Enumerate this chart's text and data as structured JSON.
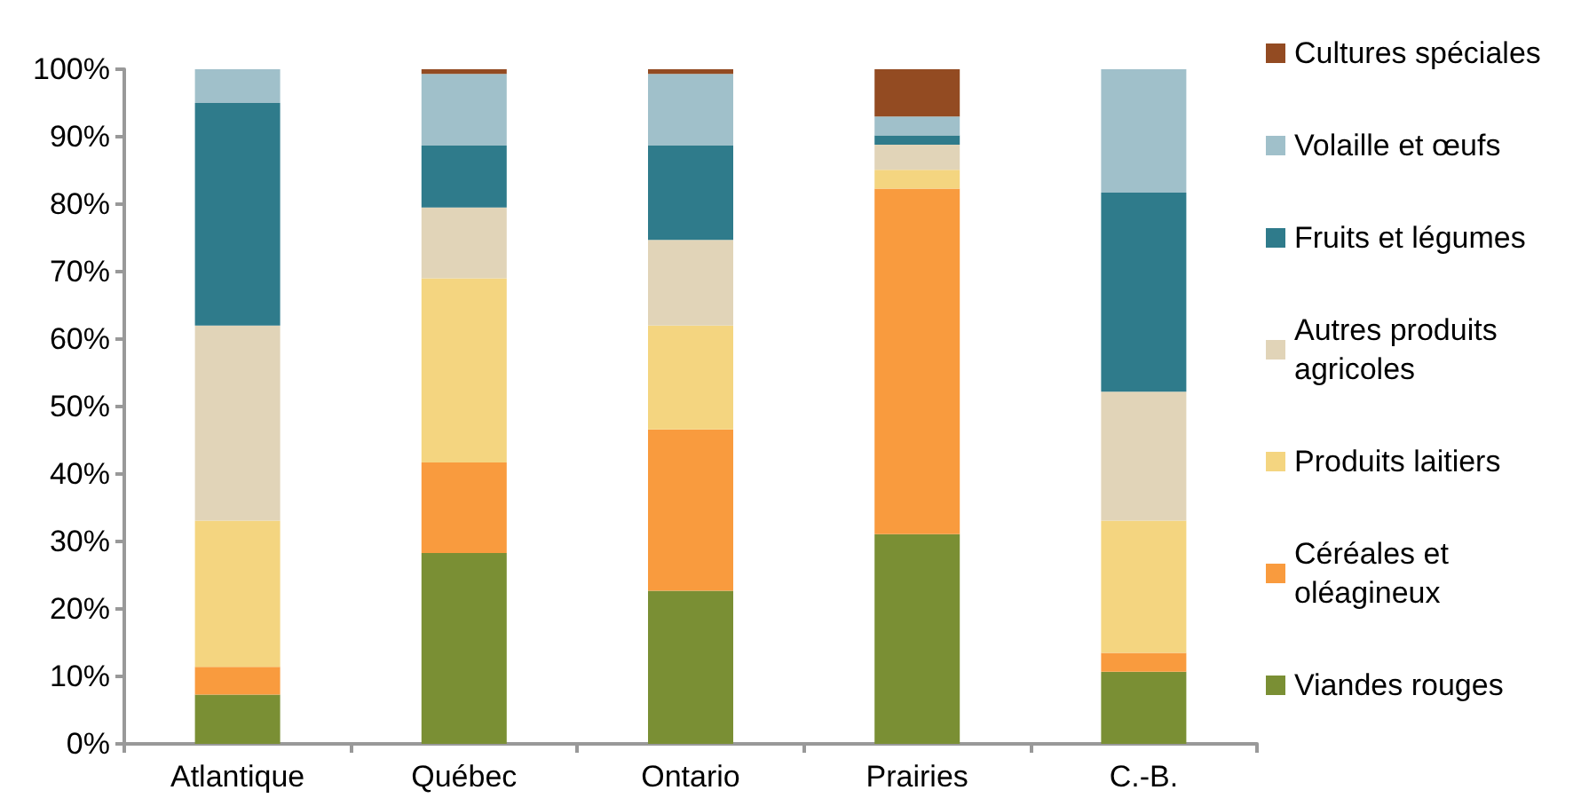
{
  "chart_data": {
    "type": "bar",
    "stacked": true,
    "categories": [
      "Atlantique",
      "Québec",
      "Ontario",
      "Prairies",
      "C.-B."
    ],
    "series": [
      {
        "name": "Viandes rouges",
        "color": "#7a8f34",
        "values": [
          7.3,
          28.3,
          22.7,
          31.1,
          10.7
        ]
      },
      {
        "name": "Céréales et oléagineux",
        "color": "#f99b3e",
        "values": [
          4.1,
          13.4,
          23.9,
          51.2,
          2.8
        ]
      },
      {
        "name": "Produits laitiers",
        "color": "#f4d580",
        "values": [
          21.7,
          27.3,
          15.4,
          2.8,
          19.6
        ]
      },
      {
        "name": "Autres produits agricoles",
        "color": "#e1d4b8",
        "values": [
          28.9,
          10.5,
          12.7,
          3.7,
          19.1
        ]
      },
      {
        "name": "Fruits et légumes",
        "color": "#2f7b8b",
        "values": [
          33.0,
          9.2,
          14.0,
          1.4,
          29.5
        ]
      },
      {
        "name": "Volaille et œufs",
        "color": "#a0c0ca",
        "values": [
          5.0,
          10.6,
          10.6,
          2.8,
          18.3
        ]
      },
      {
        "name": "Cultures spéciales",
        "color": "#934b22",
        "values": [
          0,
          0.7,
          0.7,
          7.0,
          0
        ]
      }
    ],
    "ylim": [
      0,
      100
    ],
    "yticks": [
      {
        "value": 0,
        "label": "0%"
      },
      {
        "value": 10,
        "label": "10%"
      },
      {
        "value": 20,
        "label": "20%"
      },
      {
        "value": 30,
        "label": "30%"
      },
      {
        "value": 40,
        "label": "40%"
      },
      {
        "value": 50,
        "label": "50%"
      },
      {
        "value": 60,
        "label": "60%"
      },
      {
        "value": 70,
        "label": "70%"
      },
      {
        "value": 80,
        "label": "80%"
      },
      {
        "value": 90,
        "label": "90%"
      },
      {
        "value": 100,
        "label": "100%"
      }
    ],
    "grid": false,
    "legend": "right"
  }
}
